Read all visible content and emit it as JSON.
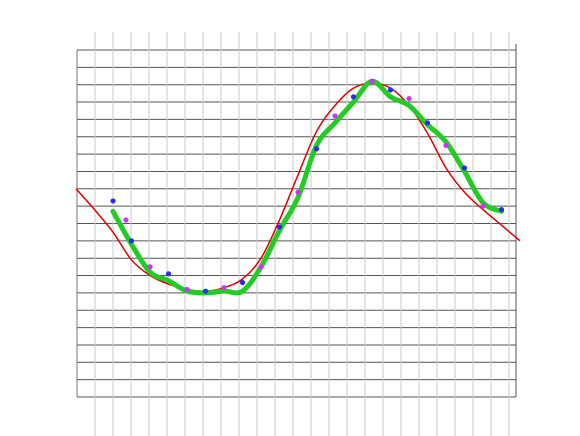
{
  "chart_data": {
    "type": "line",
    "title": "",
    "xlabel": "",
    "ylabel": "",
    "xlim": [
      0,
      23
    ],
    "ylim": [
      0,
      20
    ],
    "grid": true,
    "legend": "none",
    "series": [
      {
        "style": "thin-line",
        "color": "#e00000",
        "x": [
          -1,
          0,
          1,
          2,
          3,
          4,
          5,
          6,
          7,
          8,
          9,
          10,
          11,
          12,
          13,
          14,
          15,
          16,
          17,
          18,
          19,
          20,
          21,
          22,
          23
        ],
        "y": [
          12.0,
          10.8,
          9.5,
          7.9,
          7.0,
          6.5,
          6.2,
          6.1,
          6.3,
          6.8,
          8.0,
          10.2,
          12.8,
          15.3,
          16.8,
          17.8,
          18.1,
          17.8,
          16.8,
          15.2,
          13.2,
          11.8,
          10.8,
          9.9,
          9.0
        ]
      },
      {
        "style": "thick-smoothed-line",
        "color": "#22cc22",
        "x": [
          1,
          2,
          3,
          4,
          5,
          6,
          7,
          8,
          9,
          10,
          11,
          12,
          13,
          14,
          15,
          16,
          17,
          18,
          19,
          20,
          21,
          22
        ],
        "y": [
          10.7,
          8.8,
          7.2,
          6.7,
          6.1,
          6.0,
          6.1,
          6.1,
          7.5,
          9.6,
          11.5,
          14.5,
          15.8,
          17.0,
          18.2,
          17.3,
          16.8,
          15.7,
          14.7,
          13.0,
          11.2,
          10.7
        ]
      },
      {
        "style": "points",
        "colors": [
          "#2a2aff",
          "#cc33ff"
        ],
        "x": [
          1,
          1.7,
          2,
          3,
          4,
          5,
          6,
          7,
          8,
          9,
          10,
          11,
          12,
          13,
          14,
          15,
          16,
          17,
          18,
          19,
          20,
          21,
          22
        ],
        "y": [
          11.3,
          10.2,
          9.0,
          7.5,
          7.1,
          6.2,
          6.1,
          6.3,
          6.6,
          7.5,
          9.8,
          11.8,
          14.3,
          16.2,
          17.3,
          18.2,
          17.7,
          17.2,
          15.8,
          14.5,
          13.2,
          11.0,
          10.8
        ]
      }
    ]
  }
}
